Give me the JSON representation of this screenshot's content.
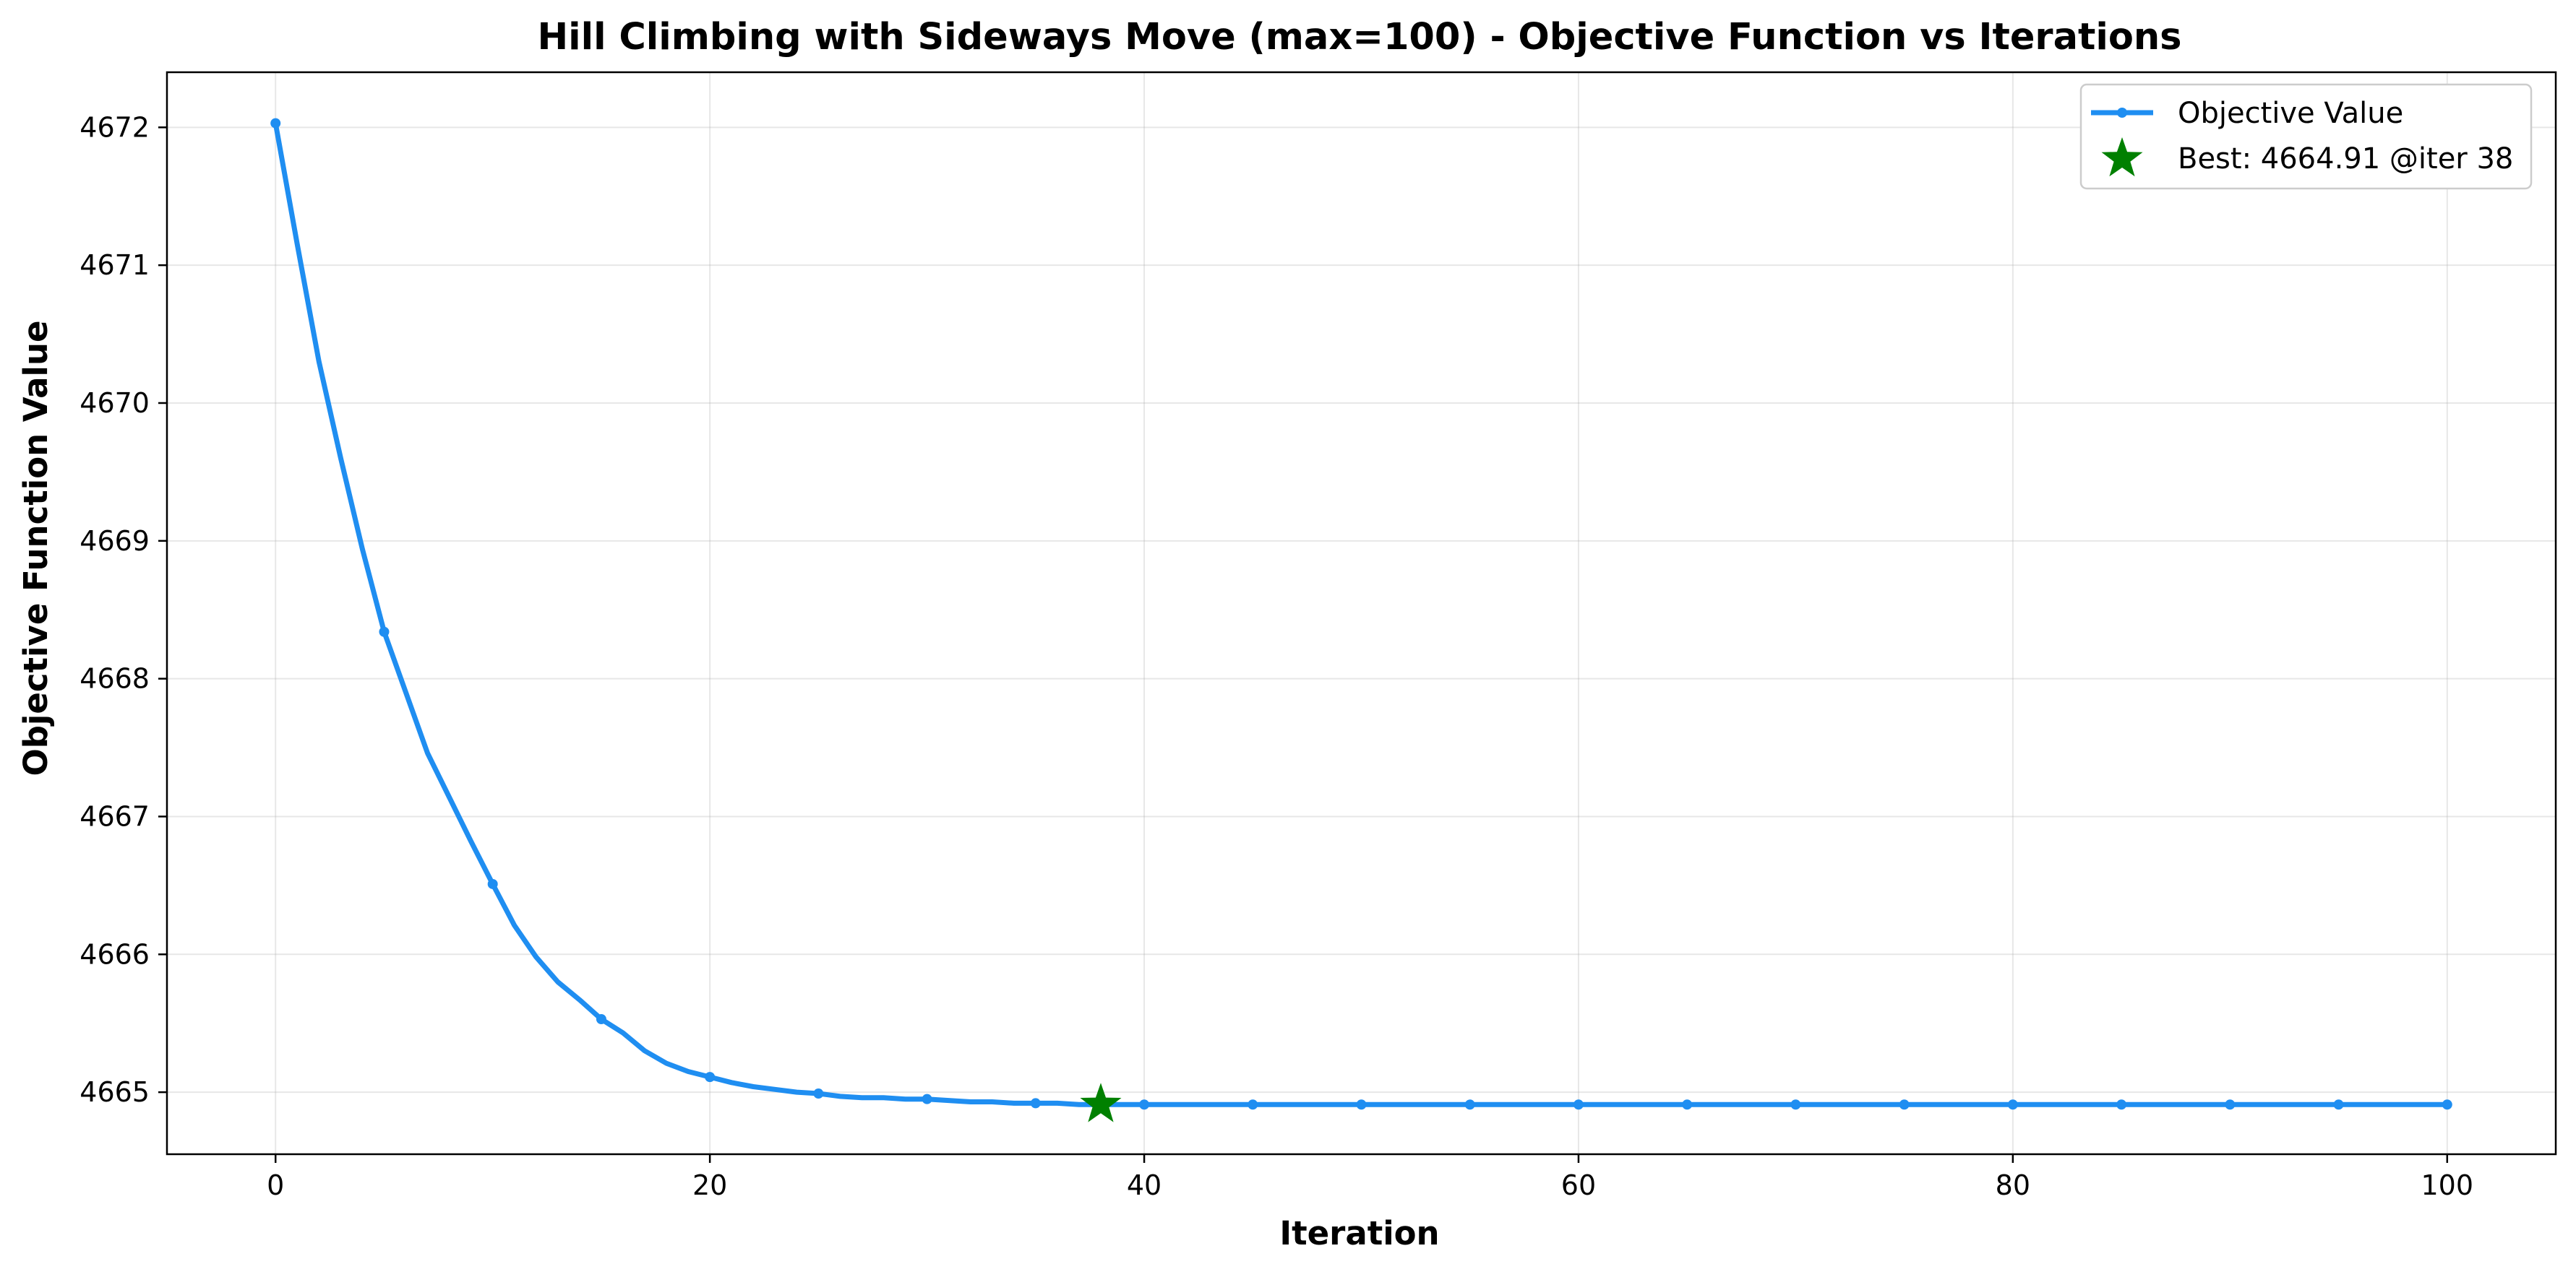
{
  "chart_data": {
    "type": "line",
    "title": "Hill Climbing with Sideways Move (max=100) - Objective Function vs Iterations",
    "xlabel": "Iteration",
    "ylabel": "Objective Function Value",
    "xlim": [
      -5,
      105
    ],
    "ylim": [
      4664.55,
      4672.4
    ],
    "xticks": [
      0,
      20,
      40,
      60,
      80,
      100
    ],
    "yticks": [
      4665,
      4666,
      4667,
      4668,
      4669,
      4670,
      4671,
      4672
    ],
    "grid": true,
    "legend_position": "top-right",
    "series": [
      {
        "name": "Objective Value",
        "color": "#1f8ef1",
        "x": [
          0,
          1,
          2,
          3,
          4,
          5,
          6,
          7,
          8,
          9,
          10,
          11,
          12,
          13,
          14,
          15,
          16,
          17,
          18,
          19,
          20,
          21,
          22,
          23,
          24,
          25,
          26,
          27,
          28,
          29,
          30,
          31,
          32,
          33,
          34,
          35,
          36,
          37,
          38,
          39,
          40,
          41,
          42,
          43,
          44,
          45,
          46,
          47,
          48,
          49,
          50,
          51,
          52,
          53,
          54,
          55,
          56,
          57,
          58,
          59,
          60,
          61,
          62,
          63,
          64,
          65,
          66,
          67,
          68,
          69,
          70,
          71,
          72,
          73,
          74,
          75,
          76,
          77,
          78,
          79,
          80,
          81,
          82,
          83,
          84,
          85,
          86,
          87,
          88,
          89,
          90,
          91,
          92,
          93,
          94,
          95,
          96,
          97,
          98,
          99,
          100
        ],
        "y": [
          4672.03,
          4671.15,
          4670.3,
          4669.6,
          4668.94,
          4668.34,
          4667.9,
          4667.46,
          4667.14,
          4666.82,
          4666.51,
          4666.21,
          4665.98,
          4665.8,
          4665.67,
          4665.53,
          4665.43,
          4665.3,
          4665.21,
          4665.15,
          4665.11,
          4665.07,
          4665.04,
          4665.02,
          4665.0,
          4664.99,
          4664.97,
          4664.96,
          4664.96,
          4664.95,
          4664.95,
          4664.94,
          4664.93,
          4664.93,
          4664.92,
          4664.92,
          4664.92,
          4664.91,
          4664.91,
          4664.91,
          4664.91,
          4664.91,
          4664.91,
          4664.91,
          4664.91,
          4664.91,
          4664.91,
          4664.91,
          4664.91,
          4664.91,
          4664.91,
          4664.91,
          4664.91,
          4664.91,
          4664.91,
          4664.91,
          4664.91,
          4664.91,
          4664.91,
          4664.91,
          4664.91,
          4664.91,
          4664.91,
          4664.91,
          4664.91,
          4664.91,
          4664.91,
          4664.91,
          4664.91,
          4664.91,
          4664.91,
          4664.91,
          4664.91,
          4664.91,
          4664.91,
          4664.91,
          4664.91,
          4664.91,
          4664.91,
          4664.91,
          4664.91,
          4664.91,
          4664.91,
          4664.91,
          4664.91,
          4664.91,
          4664.91,
          4664.91,
          4664.91,
          4664.91,
          4664.91,
          4664.91,
          4664.91,
          4664.91,
          4664.91,
          4664.91,
          4664.91,
          4664.91,
          4664.91,
          4664.91,
          4664.91
        ],
        "marker_every": 5
      }
    ],
    "best": {
      "label": "Best: 4664.91 @iter 38",
      "x": 38,
      "y": 4664.91,
      "color": "#008000"
    }
  }
}
